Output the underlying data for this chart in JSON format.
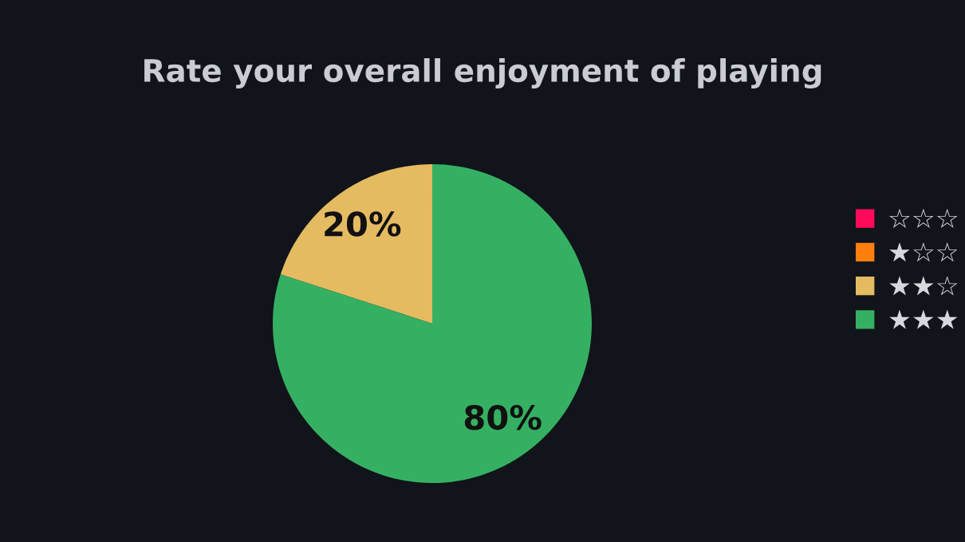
{
  "chart_data": {
    "type": "pie",
    "title": "Rate your overall enjoyment of playing",
    "categories": [
      "☆☆☆",
      "★☆☆",
      "★★☆",
      "★★★"
    ],
    "values": [
      0,
      0,
      20,
      80
    ],
    "colors": [
      "#ff0a5a",
      "#ff7f0e",
      "#e5bb62",
      "#35b062"
    ],
    "value_labels": [
      null,
      null,
      "20%",
      "80%"
    ],
    "legend": "right"
  }
}
